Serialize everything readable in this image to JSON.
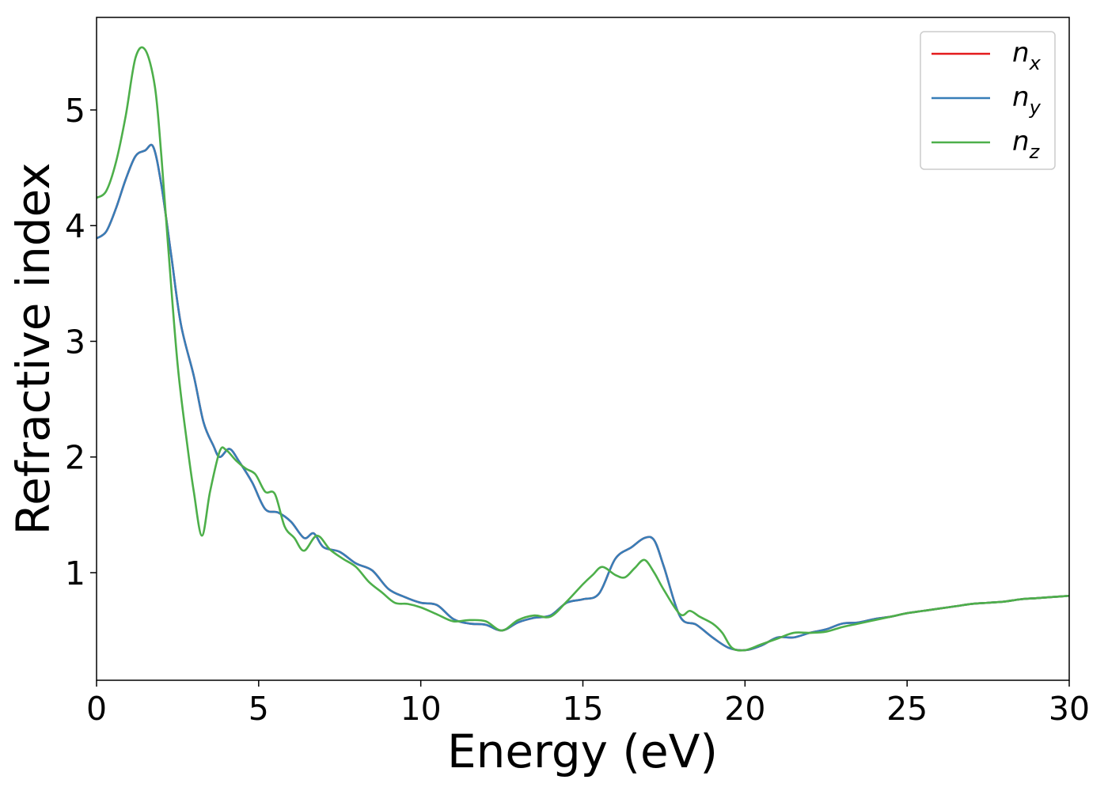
{
  "chart_data": {
    "type": "line",
    "xlabel": "Energy (eV)",
    "ylabel": "Refractive index",
    "xlim": [
      0,
      30
    ],
    "ylim": [
      0.07,
      5.8
    ],
    "x_ticks": [
      0,
      5,
      10,
      15,
      20,
      25,
      30
    ],
    "y_ticks": [
      1,
      2,
      3,
      4,
      5
    ],
    "grid": false,
    "legend_position": "top-right",
    "legend": [
      {
        "base": "n",
        "sub": "x",
        "color": "#e41a1c"
      },
      {
        "base": "n",
        "sub": "y",
        "color": "#377eb8"
      },
      {
        "base": "n",
        "sub": "z",
        "color": "#4daf4a"
      }
    ],
    "series": [
      {
        "name": "n_x",
        "color": "#e41a1c",
        "x": [
          0,
          0.3,
          0.6,
          0.9,
          1.2,
          1.5,
          1.75,
          2.0,
          2.3,
          2.6,
          3.0,
          3.3,
          3.6,
          3.8,
          4.1,
          4.4,
          4.8,
          5.2,
          5.6,
          6.0,
          6.4,
          6.7,
          7.0,
          7.5,
          8.0,
          8.5,
          9.0,
          9.5,
          10.0,
          10.5,
          11.0,
          11.5,
          12.0,
          12.5,
          13.0,
          13.5,
          14.0,
          14.5,
          15.0,
          15.5,
          16.0,
          16.5,
          16.9,
          17.2,
          17.5,
          18.0,
          18.5,
          19.0,
          19.5,
          20.0,
          20.5,
          21.0,
          21.5,
          22.0,
          22.5,
          23.0,
          23.5,
          24.0,
          24.5,
          25.0,
          25.5,
          26.0,
          26.5,
          27.0,
          27.5,
          28.0,
          28.5,
          29.0,
          29.5,
          30.0
        ],
        "y": [
          3.89,
          3.95,
          4.15,
          4.4,
          4.6,
          4.65,
          4.68,
          4.35,
          3.75,
          3.15,
          2.7,
          2.3,
          2.1,
          2.0,
          2.07,
          1.96,
          1.78,
          1.55,
          1.52,
          1.44,
          1.3,
          1.34,
          1.22,
          1.18,
          1.08,
          1.02,
          0.86,
          0.79,
          0.74,
          0.72,
          0.6,
          0.56,
          0.55,
          0.5,
          0.57,
          0.61,
          0.63,
          0.74,
          0.77,
          0.82,
          1.12,
          1.22,
          1.3,
          1.28,
          1.05,
          0.62,
          0.55,
          0.44,
          0.35,
          0.33,
          0.37,
          0.44,
          0.44,
          0.48,
          0.51,
          0.56,
          0.57,
          0.6,
          0.62,
          0.65,
          0.67,
          0.69,
          0.71,
          0.73,
          0.74,
          0.75,
          0.77,
          0.78,
          0.79,
          0.8
        ]
      },
      {
        "name": "n_y",
        "color": "#377eb8",
        "x": [
          0,
          0.3,
          0.6,
          0.9,
          1.2,
          1.5,
          1.75,
          2.0,
          2.3,
          2.6,
          3.0,
          3.3,
          3.6,
          3.8,
          4.1,
          4.4,
          4.8,
          5.2,
          5.6,
          6.0,
          6.4,
          6.7,
          7.0,
          7.5,
          8.0,
          8.5,
          9.0,
          9.5,
          10.0,
          10.5,
          11.0,
          11.5,
          12.0,
          12.5,
          13.0,
          13.5,
          14.0,
          14.5,
          15.0,
          15.5,
          16.0,
          16.5,
          16.9,
          17.2,
          17.5,
          18.0,
          18.5,
          19.0,
          19.5,
          20.0,
          20.5,
          21.0,
          21.5,
          22.0,
          22.5,
          23.0,
          23.5,
          24.0,
          24.5,
          25.0,
          25.5,
          26.0,
          26.5,
          27.0,
          27.5,
          28.0,
          28.5,
          29.0,
          29.5,
          30.0
        ],
        "y": [
          3.89,
          3.95,
          4.15,
          4.4,
          4.6,
          4.65,
          4.68,
          4.35,
          3.75,
          3.15,
          2.7,
          2.3,
          2.1,
          2.0,
          2.07,
          1.96,
          1.78,
          1.55,
          1.52,
          1.44,
          1.3,
          1.34,
          1.22,
          1.18,
          1.08,
          1.02,
          0.86,
          0.79,
          0.74,
          0.72,
          0.6,
          0.56,
          0.55,
          0.5,
          0.57,
          0.61,
          0.63,
          0.74,
          0.77,
          0.82,
          1.12,
          1.22,
          1.3,
          1.28,
          1.05,
          0.62,
          0.55,
          0.44,
          0.35,
          0.33,
          0.37,
          0.44,
          0.44,
          0.48,
          0.51,
          0.56,
          0.57,
          0.6,
          0.62,
          0.65,
          0.67,
          0.69,
          0.71,
          0.73,
          0.74,
          0.75,
          0.77,
          0.78,
          0.79,
          0.8
        ]
      },
      {
        "name": "n_z",
        "color": "#4daf4a",
        "x": [
          0,
          0.3,
          0.6,
          0.9,
          1.2,
          1.5,
          1.8,
          2.0,
          2.2,
          2.5,
          2.8,
          3.0,
          3.25,
          3.5,
          3.8,
          4.0,
          4.3,
          4.6,
          4.9,
          5.2,
          5.5,
          5.8,
          6.1,
          6.4,
          6.8,
          7.2,
          7.6,
          8.0,
          8.4,
          8.8,
          9.2,
          9.6,
          10.0,
          10.5,
          11.0,
          11.5,
          12.0,
          12.5,
          13.0,
          13.5,
          14.0,
          14.5,
          15.0,
          15.3,
          15.6,
          16.0,
          16.3,
          16.6,
          16.9,
          17.2,
          17.5,
          18.0,
          18.3,
          18.6,
          19.0,
          19.3,
          19.6,
          20.0,
          20.5,
          21.0,
          21.5,
          22.0,
          22.5,
          23.0,
          23.5,
          24.0,
          24.5,
          25.0,
          25.5,
          26.0,
          26.5,
          27.0,
          27.5,
          28.0,
          28.5,
          29.0,
          29.5,
          30.0
        ],
        "y": [
          4.24,
          4.3,
          4.55,
          4.95,
          5.45,
          5.52,
          5.2,
          4.6,
          3.85,
          2.8,
          2.1,
          1.7,
          1.32,
          1.7,
          2.05,
          2.06,
          1.97,
          1.9,
          1.85,
          1.7,
          1.68,
          1.4,
          1.3,
          1.19,
          1.32,
          1.2,
          1.12,
          1.05,
          0.92,
          0.83,
          0.74,
          0.73,
          0.7,
          0.64,
          0.58,
          0.59,
          0.58,
          0.5,
          0.59,
          0.63,
          0.62,
          0.75,
          0.9,
          0.98,
          1.05,
          0.98,
          0.96,
          1.04,
          1.11,
          1.0,
          0.85,
          0.64,
          0.67,
          0.62,
          0.56,
          0.48,
          0.35,
          0.33,
          0.38,
          0.43,
          0.48,
          0.48,
          0.49,
          0.53,
          0.56,
          0.59,
          0.62,
          0.65,
          0.67,
          0.69,
          0.71,
          0.73,
          0.74,
          0.75,
          0.77,
          0.78,
          0.79,
          0.8
        ]
      }
    ]
  }
}
